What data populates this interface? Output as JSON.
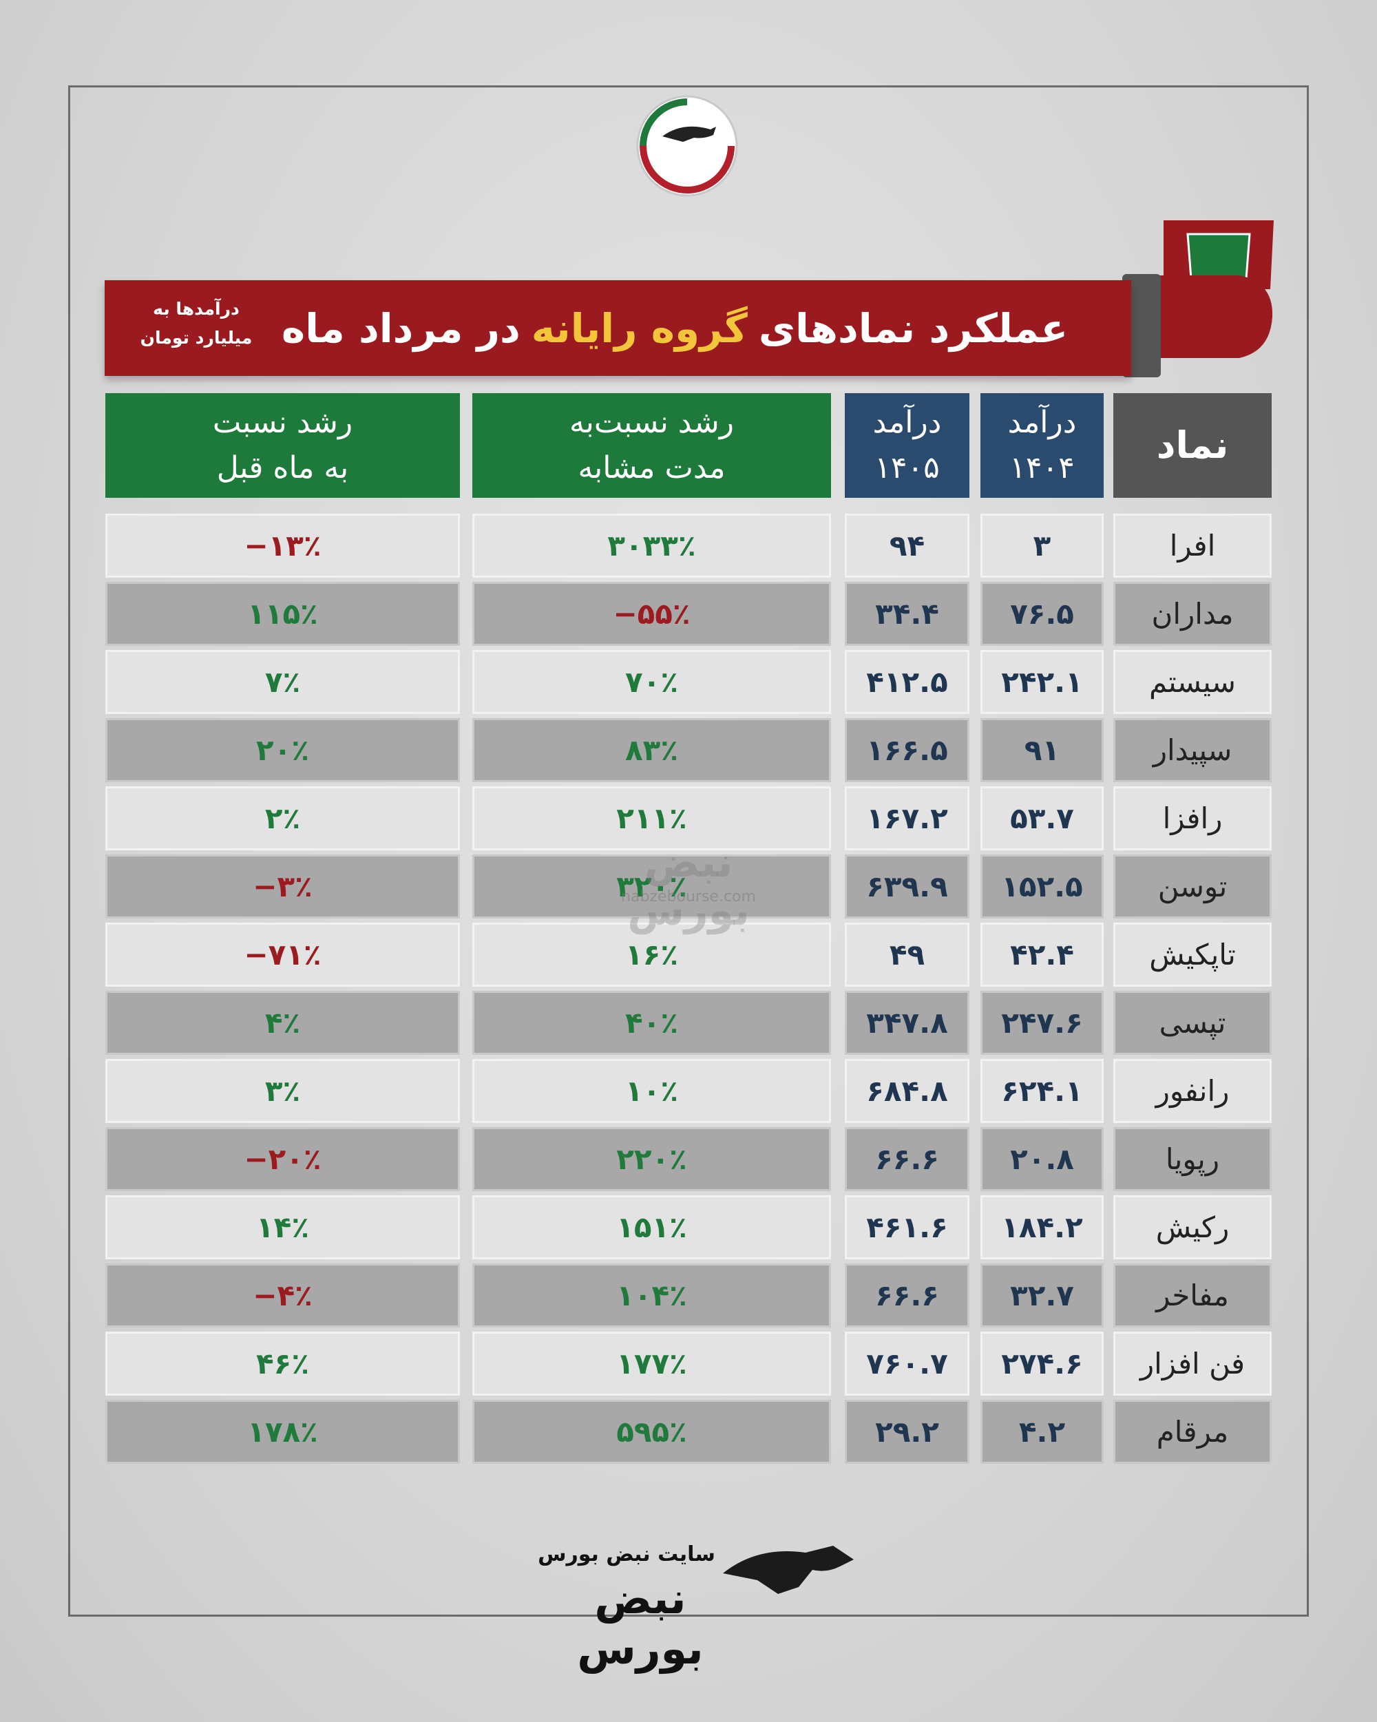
{
  "header": {
    "title": [
      "عملکرد نمادهای",
      "گروه رایانه",
      "در مرداد ماه"
    ],
    "note": [
      "درآمدها به",
      "میلیارد تومان"
    ]
  },
  "table": {
    "columns": [
      [
        "نماد"
      ],
      [
        "درآمد",
        "۱۴۰۴"
      ],
      [
        "درآمد",
        "۱۴۰۵"
      ],
      [
        "رشد نسبت‌به",
        "مدت مشابه"
      ],
      [
        "رشد نسبت",
        "به ماه قبل"
      ]
    ],
    "rows": [
      [
        "افرا",
        "۳",
        "۹۴",
        "۳۰۳۳٪",
        "−۱۳٪"
      ],
      [
        "مداران",
        "۷۶.۵",
        "۳۴.۴",
        "−۵۵٪",
        "۱۱۵٪"
      ],
      [
        "سیستم",
        "۲۴۲.۱",
        "۴۱۲.۵",
        "۷۰٪",
        "۷٪"
      ],
      [
        "سپیدار",
        "۹۱",
        "۱۶۶.۵",
        "۸۳٪",
        "۲۰٪"
      ],
      [
        "رافزا",
        "۵۳.۷",
        "۱۶۷.۲",
        "۲۱۱٪",
        "۲٪"
      ],
      [
        "توسن",
        "۱۵۲.۵",
        "۶۳۹.۹",
        "۳۲۰٪",
        "−۳٪"
      ],
      [
        "تاپکیش",
        "۴۲.۴",
        "۴۹",
        "۱۶٪",
        "−۷۱٪"
      ],
      [
        "تپسی",
        "۲۴۷.۶",
        "۳۴۷.۸",
        "۴۰٪",
        "۴٪"
      ],
      [
        "رانفور",
        "۶۲۴.۱",
        "۶۸۴.۸",
        "۱۰٪",
        "۳٪"
      ],
      [
        "رپویا",
        "۲۰.۸",
        "۶۶.۶",
        "۲۲۰٪",
        "−۲۰٪"
      ],
      [
        "رکیش",
        "۱۸۴.۲",
        "۴۶۱.۶",
        "۱۵۱٪",
        "۱۴٪"
      ],
      [
        "مفاخر",
        "۳۲.۷",
        "۶۶.۶",
        "۱۰۴٪",
        "−۴٪"
      ],
      [
        "فن افزار",
        "۲۷۴.۶",
        "۷۶۰.۷",
        "۱۷۷٪",
        "۴۶٪"
      ],
      [
        "مرقام",
        "۴.۲",
        "۲۹.۲",
        "۵۹۵٪",
        "۱۷۸٪"
      ]
    ]
  },
  "watermark": {
    "logo": "نبض بورس",
    "url": "nabzebourse.com"
  },
  "footer": {
    "caption": "سایت نبض بورس",
    "logo": "نبض بورس"
  }
}
